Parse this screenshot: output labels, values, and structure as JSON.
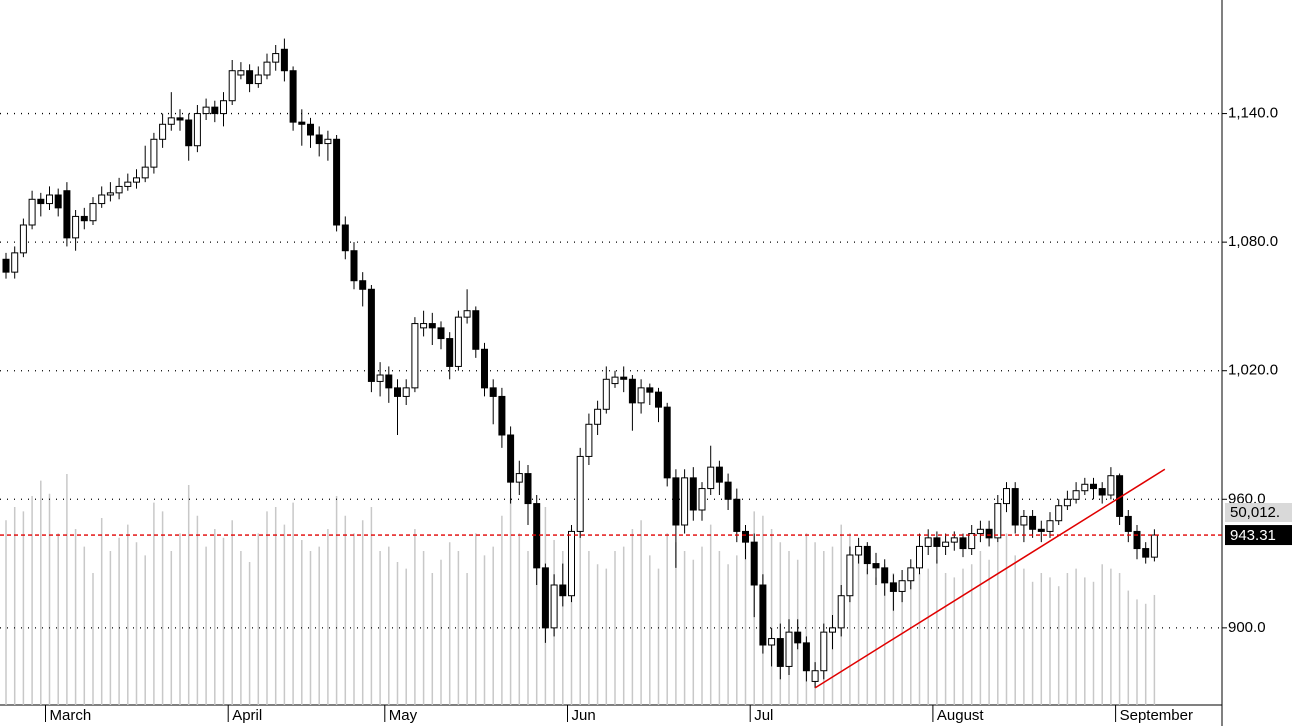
{
  "chart_data": {
    "type": "candlestick",
    "categories": [
      null,
      null,
      null,
      null,
      null,
      "March",
      null,
      null,
      null,
      null,
      null,
      null,
      null,
      null,
      null,
      null,
      null,
      null,
      null,
      null,
      null,
      null,
      null,
      null,
      null,
      null,
      "April",
      null,
      null,
      null,
      null,
      null,
      null,
      null,
      null,
      null,
      null,
      null,
      null,
      null,
      null,
      null,
      null,
      null,
      "May",
      null,
      null,
      null,
      null,
      null,
      null,
      null,
      null,
      null,
      null,
      null,
      null,
      null,
      null,
      null,
      null,
      null,
      null,
      null,
      null,
      "Jun",
      null,
      null,
      null,
      null,
      null,
      null,
      null,
      null,
      null,
      null,
      null,
      null,
      null,
      null,
      null,
      null,
      null,
      null,
      null,
      null,
      "Jul",
      null,
      null,
      null,
      null,
      null,
      null,
      null,
      null,
      null,
      null,
      null,
      null,
      null,
      null,
      null,
      null,
      null,
      null,
      null,
      null,
      "August",
      null,
      null,
      null,
      null,
      null,
      null,
      null,
      null,
      null,
      null,
      null,
      null,
      null,
      null,
      null,
      null,
      null,
      null,
      null,
      null,
      "September",
      null,
      null,
      null,
      null
    ],
    "open": [
      1072,
      1066,
      1075,
      1088,
      1100,
      1098,
      1102,
      1104,
      1082,
      1092,
      1090,
      1098,
      1102,
      1103,
      1106,
      1108,
      1110,
      1115,
      1128,
      1135,
      1138,
      1137,
      1125,
      1140,
      1143,
      1140,
      1146,
      1158,
      1160,
      1154,
      1158,
      1164,
      1170,
      1160,
      1136,
      1135,
      1130,
      1126,
      1128,
      1088,
      1076,
      1062,
      1058,
      1015,
      1018,
      1012,
      1008,
      1012,
      1040,
      1042,
      1040,
      1035,
      1022,
      1045,
      1048,
      1030,
      1012,
      1008,
      990,
      968,
      972,
      958,
      928,
      900,
      920,
      915,
      945,
      980,
      995,
      1002,
      1014,
      1017,
      1016,
      1005,
      1012,
      1010,
      1003,
      970,
      948,
      970,
      955,
      965,
      975,
      968,
      960,
      945,
      940,
      920,
      892,
      895,
      882,
      898,
      893,
      875,
      880,
      898,
      900,
      915,
      934,
      938,
      930,
      928,
      921,
      917,
      922,
      928,
      938,
      942,
      938,
      940,
      942,
      937,
      944,
      946,
      942,
      958,
      965,
      948,
      952,
      946,
      945,
      950,
      957,
      960,
      964,
      967,
      965,
      962,
      971,
      952,
      945,
      937,
      933
    ],
    "high": [
      1075,
      1078,
      1091,
      1104,
      1103,
      1106,
      1105,
      1108,
      1095,
      1096,
      1101,
      1106,
      1108,
      1110,
      1112,
      1114,
      1125,
      1131,
      1140,
      1150,
      1142,
      1140,
      1144,
      1147,
      1146,
      1150,
      1165,
      1164,
      1163,
      1162,
      1168,
      1172,
      1175,
      1162,
      1142,
      1138,
      1134,
      1132,
      1130,
      1092,
      1080,
      1066,
      1060,
      1024,
      1022,
      1016,
      1016,
      1045,
      1048,
      1047,
      1043,
      1038,
      1048,
      1058,
      1050,
      1033,
      1016,
      1012,
      994,
      978,
      976,
      962,
      930,
      925,
      930,
      948,
      984,
      1000,
      1006,
      1022,
      1020,
      1022,
      1018,
      1016,
      1014,
      1012,
      1005,
      974,
      974,
      975,
      968,
      985,
      978,
      972,
      965,
      948,
      944,
      925,
      900,
      902,
      904,
      904,
      896,
      884,
      902,
      906,
      920,
      938,
      942,
      940,
      935,
      932,
      925,
      927,
      932,
      944,
      946,
      945,
      944,
      945,
      944,
      948,
      950,
      950,
      962,
      968,
      968,
      955,
      955,
      950,
      954,
      960,
      964,
      968,
      970,
      970,
      968,
      975,
      972,
      955,
      948,
      940,
      946
    ],
    "low": [
      1063,
      1063,
      1073,
      1086,
      1092,
      1095,
      1092,
      1078,
      1076,
      1086,
      1088,
      1096,
      1099,
      1100,
      1104,
      1105,
      1108,
      1112,
      1124,
      1132,
      1132,
      1118,
      1122,
      1137,
      1136,
      1134,
      1144,
      1156,
      1150,
      1152,
      1156,
      1160,
      1155,
      1132,
      1125,
      1124,
      1120,
      1118,
      1085,
      1072,
      1058,
      1050,
      1010,
      1008,
      1005,
      990,
      1004,
      1010,
      1036,
      1032,
      1030,
      1016,
      1020,
      1042,
      1026,
      1008,
      995,
      984,
      958,
      962,
      948,
      920,
      893,
      896,
      910,
      912,
      942,
      976,
      990,
      1000,
      1012,
      1010,
      992,
      1000,
      1004,
      996,
      966,
      928,
      944,
      950,
      950,
      962,
      962,
      955,
      940,
      932,
      905,
      888,
      882,
      876,
      878,
      890,
      875,
      872,
      876,
      890,
      896,
      912,
      930,
      925,
      920,
      915,
      908,
      912,
      918,
      925,
      934,
      930,
      934,
      936,
      933,
      934,
      940,
      938,
      940,
      954,
      944,
      940,
      942,
      940,
      942,
      948,
      955,
      958,
      962,
      960,
      958,
      960,
      948,
      940,
      932,
      930,
      931
    ],
    "close": [
      1066,
      1075,
      1088,
      1100,
      1098,
      1102,
      1096,
      1082,
      1092,
      1090,
      1098,
      1102,
      1103,
      1106,
      1108,
      1110,
      1115,
      1128,
      1135,
      1138,
      1137,
      1125,
      1140,
      1143,
      1140,
      1146,
      1160,
      1160,
      1154,
      1158,
      1164,
      1168,
      1160,
      1136,
      1135,
      1130,
      1126,
      1128,
      1088,
      1076,
      1062,
      1058,
      1015,
      1018,
      1012,
      1008,
      1012,
      1042,
      1042,
      1040,
      1035,
      1022,
      1045,
      1048,
      1030,
      1012,
      1008,
      990,
      968,
      972,
      958,
      928,
      900,
      920,
      915,
      945,
      980,
      995,
      1002,
      1016,
      1017,
      1016,
      1005,
      1012,
      1010,
      1003,
      970,
      948,
      970,
      955,
      965,
      975,
      968,
      960,
      945,
      940,
      920,
      892,
      895,
      882,
      898,
      893,
      880,
      880,
      898,
      900,
      915,
      934,
      938,
      930,
      928,
      921,
      917,
      922,
      928,
      938,
      942,
      938,
      940,
      942,
      937,
      944,
      946,
      942,
      958,
      965,
      948,
      952,
      946,
      945,
      950,
      957,
      960,
      964,
      967,
      965,
      962,
      971,
      952,
      945,
      937,
      933,
      943.31
    ],
    "volume": {
      "color": "#c8c8c8",
      "ylim": [
        0,
        160000
      ],
      "values": [
        84000,
        90000,
        88000,
        95000,
        102000,
        96000,
        78000,
        105000,
        80000,
        72000,
        60000,
        85000,
        70000,
        76000,
        82000,
        74000,
        68000,
        92000,
        88000,
        70000,
        78000,
        100000,
        86000,
        72000,
        80000,
        76000,
        84000,
        70000,
        65000,
        78000,
        88000,
        90000,
        82000,
        92000,
        75000,
        70000,
        72000,
        80000,
        95000,
        86000,
        78000,
        84000,
        90000,
        70000,
        72000,
        65000,
        62000,
        80000,
        70000,
        60000,
        66000,
        74000,
        70000,
        60000,
        78000,
        68000,
        72000,
        86000,
        94000,
        78000,
        70000,
        84000,
        90000,
        75000,
        70000,
        80000,
        88000,
        70000,
        64000,
        62000,
        70000,
        72000,
        80000,
        84000,
        68000,
        62000,
        78000,
        74000,
        70000,
        66000,
        72000,
        82000,
        70000,
        64000,
        68000,
        74000,
        88000,
        86000,
        80000,
        74000,
        70000,
        66000,
        78000,
        74000,
        70000,
        72000,
        82000,
        78000,
        70000,
        62000,
        58000,
        64000,
        60000,
        54000,
        58000,
        60000,
        62000,
        66000,
        60000,
        58000,
        62000,
        64000,
        70000,
        66000,
        74000,
        78000,
        68000,
        62000,
        56000,
        60000,
        58000,
        54000,
        60000,
        62000,
        58000,
        56000,
        64000,
        62000,
        60000,
        52000,
        48000,
        46000,
        {
          "value": 50012,
          "label": "50,012."
        }
      ]
    },
    "trendline": {
      "color": "#e00000",
      "x": [
        93,
        133.2
      ],
      "y": [
        872,
        974
      ]
    },
    "last_price_color": "#e00000",
    "ylim": [
      864,
      1193
    ],
    "yticks": [
      {
        "value": 900,
        "label": "900.0"
      },
      {
        "value": 960,
        "label": "960.0"
      },
      {
        "value": 1020,
        "label": "1,020.0"
      },
      {
        "value": 1080,
        "label": "1,080.0"
      },
      {
        "value": 1140,
        "label": "1,140.0"
      }
    ],
    "grid": true
  }
}
